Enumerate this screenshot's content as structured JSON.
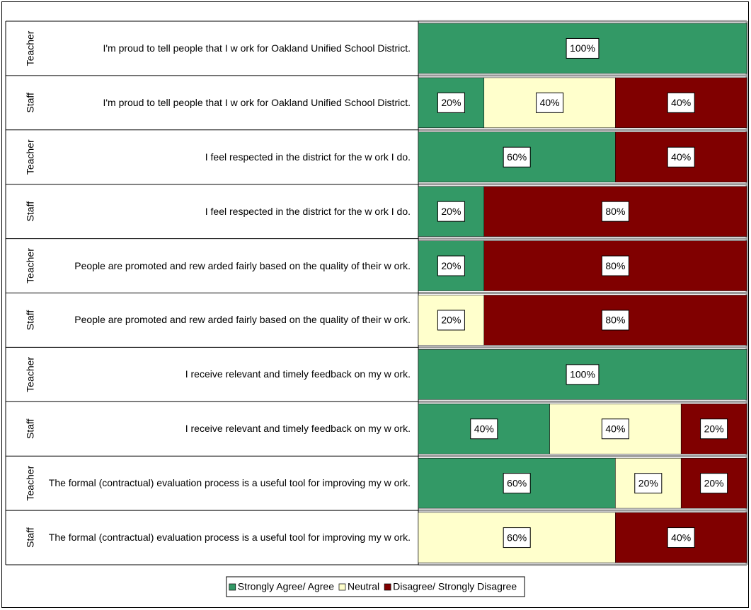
{
  "chart_data": {
    "type": "stacked_barh",
    "categories": [
      "I'm proud to tell people that I w ork for Oakland Unified School District.",
      "I'm proud to tell people that I w ork for Oakland Unified School District.",
      "I feel respected in the district for the w ork I do.",
      "I feel respected in the district for the w ork I do.",
      "People are promoted and rew arded fairly based on the quality of their w ork.",
      "People are promoted and rew arded fairly based on the quality of their w ork.",
      "I receive relevant and timely feedback on my w ork.",
      "I receive relevant and timely feedback on my w ork.",
      "The formal (contractual) evaluation process is a useful tool for improving my w ork.",
      "The formal (contractual) evaluation process is a useful tool for improving my w ork."
    ],
    "groups": [
      "Teacher",
      "Staff",
      "Teacher",
      "Staff",
      "Teacher",
      "Staff",
      "Teacher",
      "Staff",
      "Teacher",
      "Staff"
    ],
    "xlim": [
      0,
      100
    ],
    "legend": "bottom",
    "series": [
      {
        "name": "Strongly Agree/ Agree",
        "color": "#339966",
        "values": [
          100,
          20,
          60,
          20,
          20,
          0,
          100,
          40,
          60,
          0
        ],
        "value_labels": [
          "100%",
          "20%",
          "60%",
          "20%",
          "20%",
          null,
          "100%",
          "40%",
          "60%",
          null
        ]
      },
      {
        "name": "Neutral",
        "color": "#ffffcc",
        "values": [
          0,
          40,
          0,
          0,
          0,
          20,
          0,
          40,
          20,
          60
        ],
        "value_labels": [
          null,
          "40%",
          null,
          null,
          null,
          "20%",
          null,
          "40%",
          "20%",
          "60%"
        ]
      },
      {
        "name": "Disagree/ Strongly Disagree",
        "color": "#800000",
        "values": [
          0,
          40,
          40,
          80,
          80,
          80,
          0,
          20,
          20,
          40
        ],
        "value_labels": [
          null,
          "40%",
          "40%",
          "80%",
          "80%",
          "80%",
          null,
          "20%",
          "20%",
          "40%"
        ]
      }
    ]
  }
}
